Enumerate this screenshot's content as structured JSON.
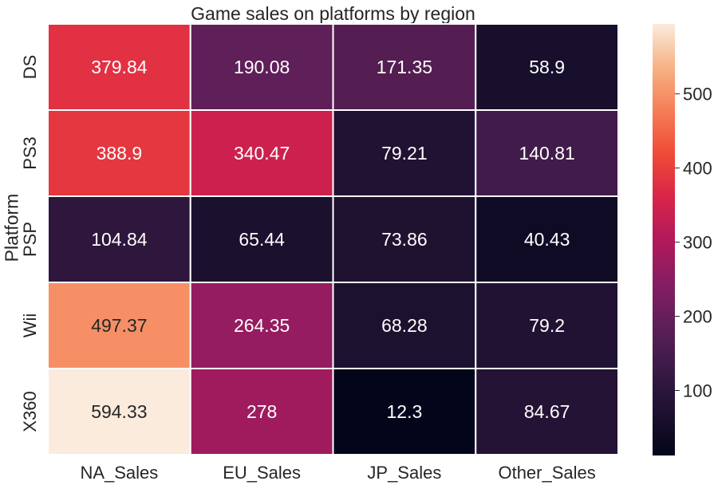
{
  "chart_data": {
    "type": "heatmap",
    "title": "Game sales on platforms by region",
    "xlabel": "",
    "ylabel": "Platform",
    "x_categories": [
      "NA_Sales",
      "EU_Sales",
      "JP_Sales",
      "Other_Sales"
    ],
    "y_categories": [
      "DS",
      "PS3",
      "PSP",
      "Wii",
      "X360"
    ],
    "values": [
      [
        379.84,
        190.08,
        171.35,
        58.9
      ],
      [
        388.9,
        340.47,
        79.21,
        140.81
      ],
      [
        104.84,
        65.44,
        73.86,
        40.43
      ],
      [
        497.37,
        264.35,
        68.28,
        79.2
      ],
      [
        594.33,
        278,
        12.3,
        84.67
      ]
    ],
    "value_labels": [
      [
        "379.84",
        "190.08",
        "171.35",
        "58.9"
      ],
      [
        "388.9",
        "340.47",
        "79.21",
        "140.81"
      ],
      [
        "104.84",
        "65.44",
        "73.86",
        "40.43"
      ],
      [
        "497.37",
        "264.35",
        "68.28",
        "79.2"
      ],
      [
        "594.33",
        "278",
        "12.3",
        "84.67"
      ]
    ],
    "colormap": "rocket",
    "vmin": 12.3,
    "vmax": 594.33,
    "colorbar_ticks": [
      100,
      200,
      300,
      400,
      500
    ],
    "colorbar_tick_labels": [
      "100",
      "200",
      "300",
      "400",
      "500"
    ],
    "grid": false,
    "cell_gridlines_color": "#ffffff",
    "annotation_light_text_color": "#ffffff",
    "annotation_dark_text_color": "#262626"
  }
}
